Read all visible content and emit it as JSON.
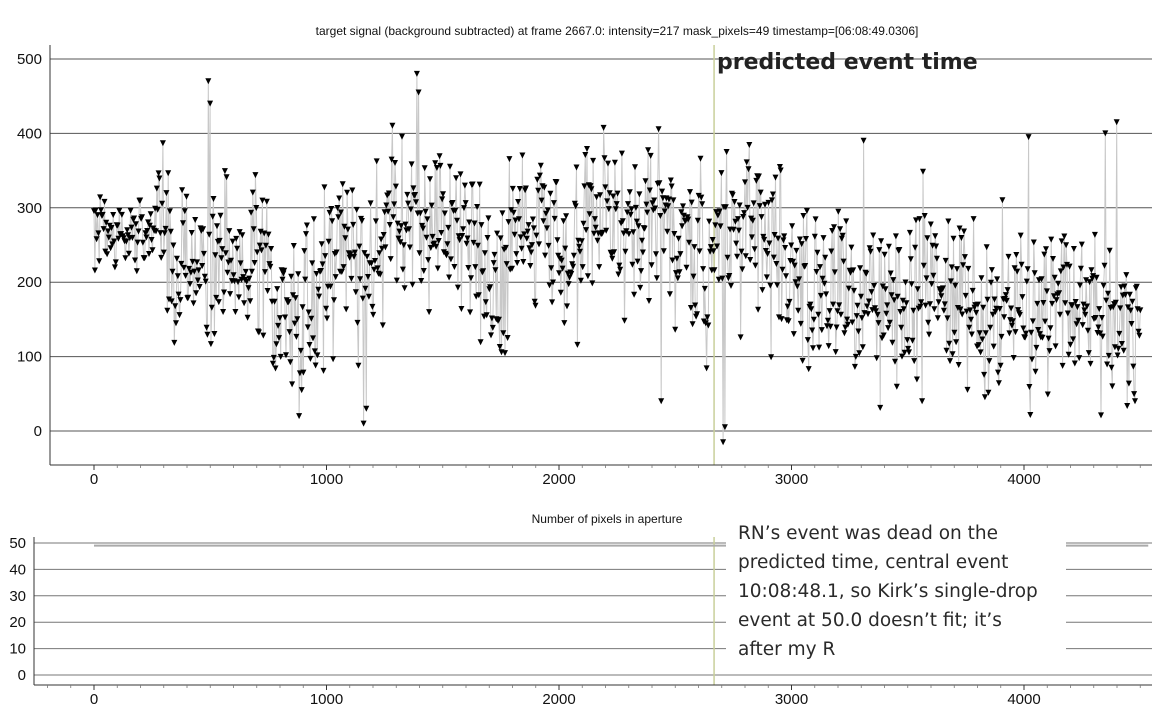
{
  "chart_data": [
    {
      "type": "line",
      "title": "target signal (background subtracted) at frame 2667.0: intensity=217 mask_pixels=49 timestamp=[06:08:49.0306]",
      "xlabel": "",
      "ylabel": "",
      "xlim": [
        -200,
        4550
      ],
      "ylim": [
        -45,
        520
      ],
      "x_ticks": [
        0,
        1000,
        2000,
        3000,
        4000
      ],
      "x_tick_labels": [
        "0",
        "1000",
        "2000",
        "3000",
        "4000"
      ],
      "y_ticks": [
        0,
        100,
        200,
        300,
        400,
        500
      ],
      "y_tick_labels": [
        "0",
        "100",
        "200",
        "300",
        "400",
        "500"
      ],
      "grid": "horizontal",
      "marker": "downward triangle",
      "series_color": "#000000",
      "connector_color": "#c8c8c8",
      "event_marker": {
        "x": 2667,
        "color": "#c9cf9a",
        "label": "predicted event time"
      },
      "x_range": [
        0,
        4500
      ],
      "n_points": 4500,
      "mean_level": 220,
      "value_range": [
        -20,
        490
      ]
    },
    {
      "type": "line",
      "title": "Number of pixels in aperture",
      "xlabel": "",
      "ylabel": "",
      "xlim": [
        -250,
        4550
      ],
      "ylim": [
        -3,
        53
      ],
      "x_ticks": [
        0,
        1000,
        2000,
        3000,
        4000
      ],
      "x_tick_labels": [
        "0",
        "1000",
        "2000",
        "3000",
        "4000"
      ],
      "y_ticks": [
        0,
        10,
        20,
        30,
        40,
        50
      ],
      "y_tick_labels": [
        "0",
        "10",
        "20",
        "30",
        "40",
        "50"
      ],
      "grid": "horizontal",
      "series_color": "#aaaaaa",
      "event_marker": {
        "x": 2667,
        "color": "#c9cf9a"
      },
      "x": [
        0,
        4500
      ],
      "values": [
        49,
        49
      ]
    }
  ],
  "note": {
    "lines": [
      "RN’s event was dead on the",
      "predicted time, central event",
      "10:08:48.1, so Kirk’s single-drop",
      "event at 50.0 doesn’t fit; it’s",
      "after my R"
    ]
  }
}
